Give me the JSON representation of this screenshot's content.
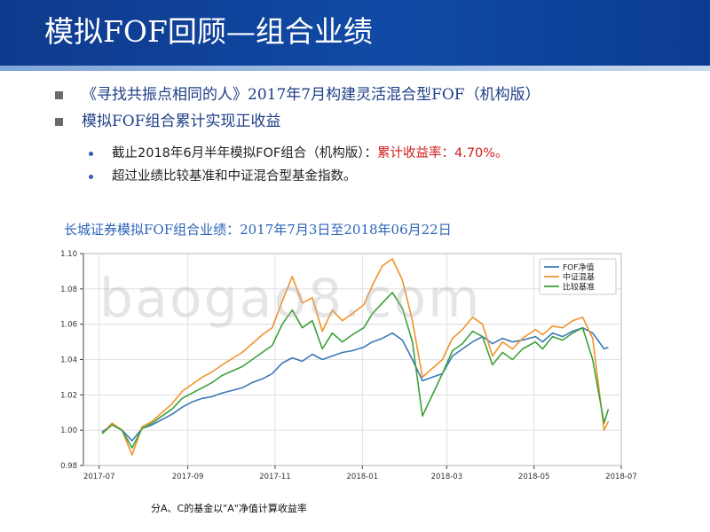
{
  "slide": {
    "title": "模拟FOF回顾—组合业绩",
    "bullets": [
      "《寻找共振点相同的人》2017年7月构建灵活混合型FOF（机构版）",
      "模拟FOF组合累计实现正收益"
    ],
    "sub_bullets": [
      {
        "text": "截止2018年6月半年模拟FOF组合（机构版）：",
        "highlight": "累计收益率：4.70%。"
      },
      {
        "text": "超过业绩比较基准和中证混合型基金指数。",
        "highlight": ""
      }
    ],
    "chart_title": "长城证券模拟FOF组合业绩：2017年7月3日至2018年06月22日",
    "footnote": "分A、C的基金以\"A\"净值计算收益率",
    "watermark": "baogao8.com"
  },
  "colors": {
    "header": "#114aa6",
    "fof": "#3b78b8",
    "index": "#f0932b",
    "benchmark": "#3aa13a"
  },
  "chart_data": {
    "type": "line",
    "title": "",
    "xlabel": "",
    "ylabel": "",
    "x_ticks": [
      "2017-07",
      "2017-09",
      "2017-11",
      "2018-01",
      "2018-03",
      "2018-05",
      "2018-07"
    ],
    "y_ticks": [
      "0.98",
      "1.00",
      "1.02",
      "1.04",
      "1.06",
      "1.08",
      "1.10"
    ],
    "ylim": [
      0.98,
      1.1
    ],
    "xlim": [
      "2017-06-20",
      "2018-07-01"
    ],
    "grid": true,
    "legend_position": "top-right",
    "series": [
      {
        "name": "FOF净值",
        "color": "#3b78b8",
        "x": [
          "2017-07-03",
          "2017-07-10",
          "2017-07-17",
          "2017-07-24",
          "2017-07-31",
          "2017-08-07",
          "2017-08-14",
          "2017-08-21",
          "2017-08-28",
          "2017-09-04",
          "2017-09-11",
          "2017-09-18",
          "2017-09-25",
          "2017-10-09",
          "2017-10-16",
          "2017-10-23",
          "2017-10-30",
          "2017-11-06",
          "2017-11-13",
          "2017-11-20",
          "2017-11-27",
          "2017-12-04",
          "2017-12-11",
          "2017-12-18",
          "2017-12-25",
          "2018-01-02",
          "2018-01-08",
          "2018-01-15",
          "2018-01-22",
          "2018-01-29",
          "2018-02-05",
          "2018-02-12",
          "2018-02-26",
          "2018-03-05",
          "2018-03-12",
          "2018-03-19",
          "2018-03-26",
          "2018-04-02",
          "2018-04-09",
          "2018-04-16",
          "2018-04-23",
          "2018-05-02",
          "2018-05-07",
          "2018-05-14",
          "2018-05-21",
          "2018-05-28",
          "2018-06-04",
          "2018-06-11",
          "2018-06-19",
          "2018-06-22"
        ],
        "values": [
          0.999,
          1.003,
          1.0,
          0.994,
          1.001,
          1.003,
          1.006,
          1.009,
          1.013,
          1.016,
          1.018,
          1.019,
          1.021,
          1.024,
          1.027,
          1.029,
          1.032,
          1.038,
          1.041,
          1.039,
          1.043,
          1.04,
          1.042,
          1.044,
          1.045,
          1.047,
          1.05,
          1.052,
          1.055,
          1.051,
          1.04,
          1.028,
          1.032,
          1.042,
          1.046,
          1.05,
          1.053,
          1.049,
          1.052,
          1.05,
          1.051,
          1.053,
          1.05,
          1.055,
          1.053,
          1.056,
          1.058,
          1.055,
          1.046,
          1.047
        ]
      },
      {
        "name": "中证混基",
        "color": "#f0932b",
        "x": [
          "2017-07-03",
          "2017-07-10",
          "2017-07-17",
          "2017-07-24",
          "2017-07-31",
          "2017-08-07",
          "2017-08-14",
          "2017-08-21",
          "2017-08-28",
          "2017-09-04",
          "2017-09-11",
          "2017-09-18",
          "2017-09-25",
          "2017-10-09",
          "2017-10-16",
          "2017-10-23",
          "2017-10-30",
          "2017-11-06",
          "2017-11-13",
          "2017-11-20",
          "2017-11-27",
          "2017-12-04",
          "2017-12-11",
          "2017-12-18",
          "2017-12-25",
          "2018-01-02",
          "2018-01-08",
          "2018-01-15",
          "2018-01-22",
          "2018-01-29",
          "2018-02-05",
          "2018-02-12",
          "2018-02-26",
          "2018-03-05",
          "2018-03-12",
          "2018-03-19",
          "2018-03-26",
          "2018-04-02",
          "2018-04-09",
          "2018-04-16",
          "2018-04-23",
          "2018-05-02",
          "2018-05-07",
          "2018-05-14",
          "2018-05-21",
          "2018-05-28",
          "2018-06-04",
          "2018-06-11",
          "2018-06-19",
          "2018-06-22"
        ],
        "values": [
          0.998,
          1.004,
          1.0,
          0.986,
          1.002,
          1.005,
          1.01,
          1.015,
          1.022,
          1.026,
          1.03,
          1.033,
          1.037,
          1.044,
          1.049,
          1.054,
          1.058,
          1.073,
          1.087,
          1.072,
          1.075,
          1.056,
          1.068,
          1.062,
          1.066,
          1.071,
          1.082,
          1.093,
          1.097,
          1.085,
          1.062,
          1.03,
          1.04,
          1.052,
          1.057,
          1.064,
          1.06,
          1.042,
          1.05,
          1.046,
          1.052,
          1.057,
          1.054,
          1.059,
          1.058,
          1.062,
          1.064,
          1.052,
          1.0,
          1.005
        ]
      },
      {
        "name": "比较基准",
        "color": "#3aa13a",
        "x": [
          "2017-07-03",
          "2017-07-10",
          "2017-07-17",
          "2017-07-24",
          "2017-07-31",
          "2017-08-07",
          "2017-08-14",
          "2017-08-21",
          "2017-08-28",
          "2017-09-04",
          "2017-09-11",
          "2017-09-18",
          "2017-09-25",
          "2017-10-09",
          "2017-10-16",
          "2017-10-23",
          "2017-10-30",
          "2017-11-06",
          "2017-11-13",
          "2017-11-20",
          "2017-11-27",
          "2017-12-04",
          "2017-12-11",
          "2017-12-18",
          "2017-12-25",
          "2018-01-02",
          "2018-01-08",
          "2018-01-15",
          "2018-01-22",
          "2018-01-29",
          "2018-02-05",
          "2018-02-12",
          "2018-02-26",
          "2018-03-05",
          "2018-03-12",
          "2018-03-19",
          "2018-03-26",
          "2018-04-02",
          "2018-04-09",
          "2018-04-16",
          "2018-04-23",
          "2018-05-02",
          "2018-05-07",
          "2018-05-14",
          "2018-05-21",
          "2018-05-28",
          "2018-06-04",
          "2018-06-11",
          "2018-06-19",
          "2018-06-22"
        ],
        "values": [
          0.998,
          1.003,
          1.0,
          0.99,
          1.001,
          1.004,
          1.008,
          1.012,
          1.018,
          1.021,
          1.024,
          1.027,
          1.031,
          1.036,
          1.04,
          1.044,
          1.048,
          1.06,
          1.068,
          1.058,
          1.062,
          1.046,
          1.055,
          1.05,
          1.054,
          1.058,
          1.066,
          1.072,
          1.078,
          1.069,
          1.05,
          1.008,
          1.032,
          1.045,
          1.049,
          1.056,
          1.053,
          1.037,
          1.044,
          1.04,
          1.046,
          1.05,
          1.046,
          1.053,
          1.051,
          1.055,
          1.058,
          1.04,
          1.004,
          1.012
        ]
      }
    ]
  }
}
